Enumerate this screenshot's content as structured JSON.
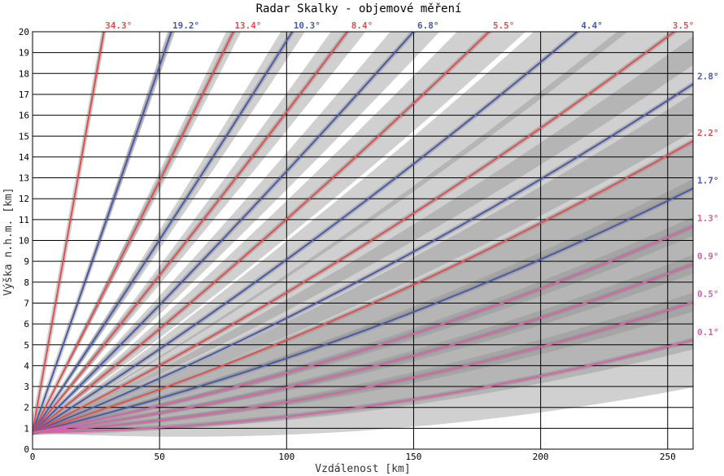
{
  "chart_data": {
    "type": "line",
    "title": "Radar Skalky - objemové měření",
    "xlabel": "Vzdálenost [km]",
    "ylabel": "Výška n.h.m. [km]",
    "xlim": [
      0,
      260
    ],
    "ylim": [
      0,
      20
    ],
    "xticks": [
      0,
      50,
      100,
      150,
      200,
      250
    ],
    "yticks": [
      0,
      1,
      2,
      3,
      4,
      5,
      6,
      7,
      8,
      9,
      10,
      11,
      12,
      13,
      14,
      15,
      16,
      17,
      18,
      19,
      20
    ],
    "radar_height_km": 0.8,
    "beamwidth_deg": 1.0,
    "colors": {
      "red": "#e05050",
      "blue": "#4a5aa8",
      "pink": "#d763a8"
    },
    "series": [
      {
        "name": "34.3°",
        "elevation": 34.3,
        "color": "red",
        "label_pos": "top"
      },
      {
        "name": "19.2°",
        "elevation": 19.2,
        "color": "blue",
        "label_pos": "top"
      },
      {
        "name": "13.4°",
        "elevation": 13.4,
        "color": "red",
        "label_pos": "top"
      },
      {
        "name": "10.3°",
        "elevation": 10.3,
        "color": "blue",
        "label_pos": "top"
      },
      {
        "name": "8.4°",
        "elevation": 8.4,
        "color": "red",
        "label_pos": "top"
      },
      {
        "name": "6.8°",
        "elevation": 6.8,
        "color": "blue",
        "label_pos": "top"
      },
      {
        "name": "5.5°",
        "elevation": 5.5,
        "color": "red",
        "label_pos": "top"
      },
      {
        "name": "4.4°",
        "elevation": 4.4,
        "color": "blue",
        "label_pos": "top"
      },
      {
        "name": "3.5°",
        "elevation": 3.5,
        "color": "red",
        "label_pos": "top"
      },
      {
        "name": "2.8°",
        "elevation": 2.8,
        "color": "blue",
        "label_pos": "right"
      },
      {
        "name": "2.2°",
        "elevation": 2.2,
        "color": "red",
        "label_pos": "right"
      },
      {
        "name": "1.7°",
        "elevation": 1.7,
        "color": "blue",
        "label_pos": "right"
      },
      {
        "name": "1.3°",
        "elevation": 1.3,
        "color": "pink",
        "label_pos": "right"
      },
      {
        "name": "0.9°",
        "elevation": 0.9,
        "color": "pink",
        "label_pos": "right"
      },
      {
        "name": "0.5°",
        "elevation": 0.5,
        "color": "pink",
        "label_pos": "right"
      },
      {
        "name": "0.1°",
        "elevation": 0.1,
        "color": "pink",
        "label_pos": "right"
      }
    ]
  }
}
